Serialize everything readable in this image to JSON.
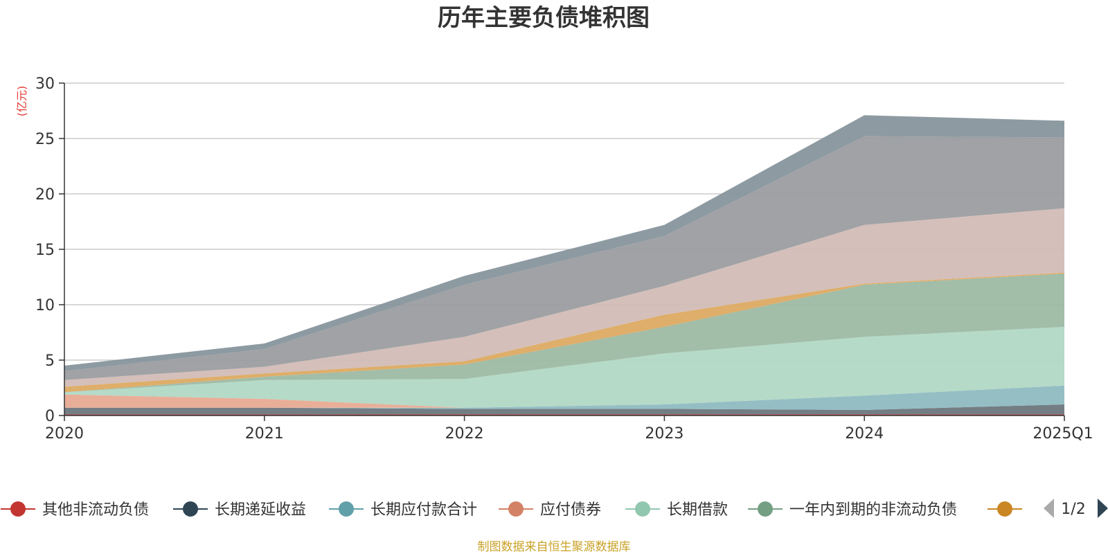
{
  "chart_data": {
    "type": "area",
    "title": "历年主要负债堆积图",
    "ylabel": "(亿元)",
    "xlabel": "",
    "categories": [
      "2020",
      "2021",
      "2022",
      "2023",
      "2024",
      "2025Q1"
    ],
    "ylim": [
      0,
      30
    ],
    "yticks": [
      0,
      5,
      10,
      15,
      20,
      25,
      30
    ],
    "stacked": true,
    "grid": true,
    "series": [
      {
        "name": "其他非流动负债",
        "color": "#c23531",
        "fill": "#c23531",
        "values": [
          0.1,
          0.1,
          0.1,
          0.1,
          0.1,
          0.1
        ]
      },
      {
        "name": "长期递延收益",
        "color": "#2f4554",
        "fill": "#6b767d",
        "values": [
          0.6,
          0.6,
          0.5,
          0.5,
          0.4,
          0.9
        ]
      },
      {
        "name": "长期应付款合计",
        "color": "#61a0a8",
        "fill": "#8fbac1",
        "values": [
          0.0,
          0.0,
          0.1,
          0.4,
          1.3,
          1.7
        ]
      },
      {
        "name": "应付债券",
        "color": "#d48265",
        "fill": "#e8aa92",
        "values": [
          1.2,
          0.8,
          0.0,
          0.0,
          0.0,
          0.0
        ]
      },
      {
        "name": "长期借款",
        "color": "#91c7ae",
        "fill": "#b1d8c5",
        "values": [
          0.2,
          1.7,
          2.6,
          4.6,
          5.3,
          5.3
        ]
      },
      {
        "name": "一年内到期的非流动负债",
        "color": "#749f83",
        "fill": "#9db9a3",
        "values": [
          0.0,
          0.3,
          1.3,
          2.4,
          4.7,
          4.8
        ]
      },
      {
        "name": "",
        "color": "#ca8622",
        "fill": "#dcaa62",
        "values": [
          0.5,
          0.3,
          0.3,
          1.1,
          0.1,
          0.1
        ]
      },
      {
        "name": "",
        "color": "#bda29a",
        "fill": "#d2bcb6",
        "values": [
          0.6,
          0.6,
          2.2,
          2.6,
          5.3,
          5.8
        ]
      },
      {
        "name": "",
        "color": "#6e7074",
        "fill": "#9b9da0",
        "values": [
          0.8,
          1.6,
          4.7,
          4.5,
          8.0,
          6.4
        ]
      },
      {
        "name": "",
        "color": "#546570",
        "fill": "#87959c",
        "values": [
          0.5,
          0.5,
          0.8,
          1.0,
          1.9,
          1.5
        ]
      }
    ]
  },
  "legend": {
    "visible_count": 7,
    "pager": "1/2"
  },
  "footer": {
    "source": "制图数据来自恒生聚源数据库"
  }
}
